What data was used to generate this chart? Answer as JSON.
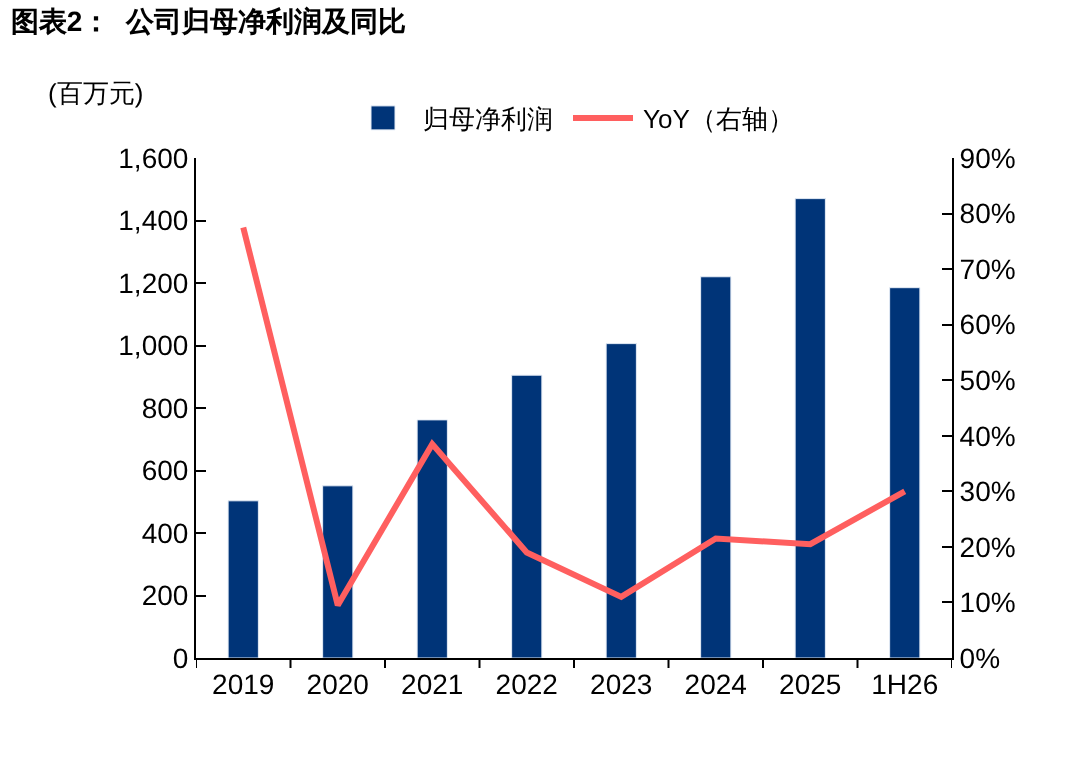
{
  "chart_data": {
    "type": "bar",
    "title": "图表2：  公司归母净利润及同比",
    "ylabel": "(百万元)",
    "categories": [
      "2019",
      "2020",
      "2021",
      "2022",
      "2023",
      "2024",
      "2025",
      "1H26"
    ],
    "series": [
      {
        "name": "归母净利润",
        "color": "#003478",
        "values": [
          503,
          551,
          762,
          905,
          1006,
          1220,
          1470,
          1185
        ]
      },
      {
        "name": "YoY（右轴）",
        "type": "line",
        "axis": "y2",
        "color": "#ff5f5f",
        "values": [
          77.5,
          9.5,
          38.5,
          19,
          11,
          21.5,
          20.5,
          30
        ]
      }
    ],
    "ylim": [
      0,
      1600
    ],
    "yticks": [
      0,
      {
        "value": 200,
        "label": "200"
      },
      {
        "value": 400,
        "label": "400"
      },
      {
        "value": 600,
        "label": "600"
      },
      {
        "value": 800,
        "label": "800"
      },
      {
        "value": 1000,
        "label": "1,000"
      },
      {
        "value": 1200,
        "label": "1,200"
      },
      {
        "value": 1400,
        "label": "1,400"
      },
      {
        "value": 1600,
        "label": "1,600"
      }
    ],
    "y2lim": [
      0,
      90
    ],
    "y2ticks": [
      {
        "value": 0,
        "label": "0%"
      },
      {
        "value": 10,
        "label": "10%"
      },
      {
        "value": 20,
        "label": "20%"
      },
      {
        "value": 30,
        "label": "30%"
      },
      {
        "value": 40,
        "label": "40%"
      },
      {
        "value": 50,
        "label": "50%"
      },
      {
        "value": 60,
        "label": "60%"
      },
      {
        "value": 70,
        "label": "70%"
      },
      {
        "value": 80,
        "label": "80%"
      },
      {
        "value": 90,
        "label": "90%"
      }
    ],
    "legend": "top",
    "marker": "none",
    "line_style": "solid"
  }
}
